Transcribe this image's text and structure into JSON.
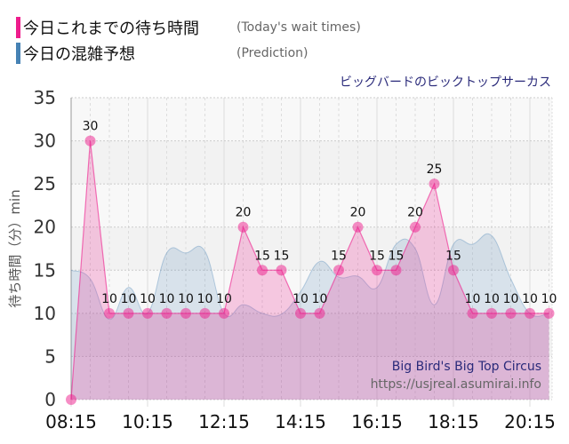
{
  "legend": [
    {
      "label_ja": "今日これまでの待ち時間",
      "label_en": "(Today's wait times)",
      "color": "#ee1c8c"
    },
    {
      "label_ja": "今日の混雑予想",
      "label_en": "(Prediction)",
      "color": "#4682b4"
    }
  ],
  "subtitle": "ビッグバードのビックトップサーカス",
  "watermark": {
    "title": "Big Bird's Big Top Circus",
    "url": "https://usjreal.asumirai.info"
  },
  "chart_data": {
    "type": "area",
    "ylabel": "待ち時間（分）min",
    "ylim": [
      0,
      35
    ],
    "yticks": [
      0,
      5,
      10,
      15,
      20,
      25,
      30,
      35
    ],
    "xtick_labels": [
      "08:15",
      "10:15",
      "12:15",
      "14:15",
      "16:15",
      "18:15",
      "20:15"
    ],
    "grid": true,
    "x": [
      "08:15",
      "08:45",
      "09:15",
      "09:45",
      "10:15",
      "10:45",
      "11:15",
      "11:45",
      "12:15",
      "12:45",
      "13:15",
      "13:45",
      "14:15",
      "14:45",
      "15:15",
      "15:45",
      "16:15",
      "16:45",
      "17:15",
      "17:45",
      "18:15",
      "18:45",
      "19:15",
      "19:45",
      "20:15",
      "20:45"
    ],
    "series": [
      {
        "name": "今日これまでの待ち時間",
        "color": "#ee1c8c",
        "data_labels": true,
        "values": [
          0,
          30,
          10,
          10,
          10,
          10,
          10,
          10,
          10,
          20,
          15,
          15,
          10,
          10,
          15,
          20,
          15,
          15,
          20,
          25,
          15,
          10,
          10,
          10,
          10,
          10
        ]
      },
      {
        "name": "今日の混雑予想",
        "color": "#4682b4",
        "values": [
          15,
          14,
          9.3,
          13,
          10,
          17,
          17,
          17.2,
          10,
          11,
          10,
          9.9,
          12.5,
          16,
          14.2,
          14.3,
          13,
          18,
          17.5,
          11,
          18,
          18,
          19,
          14,
          10,
          10
        ]
      }
    ]
  }
}
